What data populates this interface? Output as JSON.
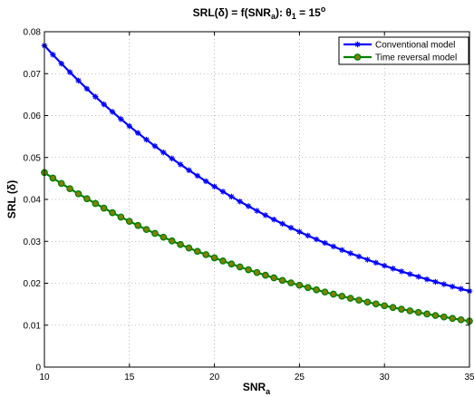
{
  "chart_data": {
    "type": "line",
    "title": {
      "prefix": "SRL(",
      "delta": "δ",
      "mid": ") = f(SNR",
      "sub_a": "a",
      "after": "):  ",
      "theta": "θ",
      "sub_1": "1",
      "eq": " = 15",
      "sup_o": "o"
    },
    "xlabel": {
      "main": "SNR",
      "sub": "a"
    },
    "ylabel": "SRL (δ)",
    "xlim": [
      10,
      35
    ],
    "ylim": [
      0,
      0.08
    ],
    "xticks": [
      10,
      15,
      20,
      25,
      30,
      35
    ],
    "yticks": [
      0,
      0.01,
      0.02,
      0.03,
      0.04,
      0.05,
      0.06,
      0.07,
      0.08
    ],
    "ytick_labels": [
      "0",
      "0.01",
      "0.02",
      "0.03",
      "0.04",
      "0.05",
      "0.06",
      "0.07",
      "0.08"
    ],
    "grid": true,
    "legend_position": "top-right",
    "x_step": 0.5,
    "series": [
      {
        "name": "Conventional model",
        "color": "#0000ff",
        "marker": "star",
        "x_start": 10,
        "x_end": 35,
        "y_start": 0.0767,
        "decay": 0.0577
      },
      {
        "name": "Time reversal model",
        "color": "#008000",
        "marker": "circle",
        "x_start": 10,
        "x_end": 35,
        "y_start": 0.0464,
        "decay": 0.0577
      }
    ]
  }
}
